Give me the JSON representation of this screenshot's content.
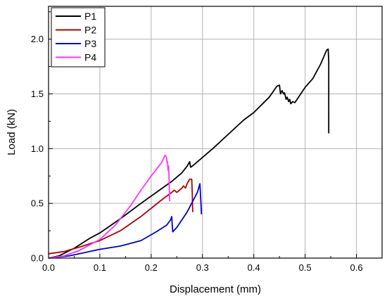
{
  "chart_data": {
    "type": "line",
    "title": "",
    "xlabel": "Displacement (mm)",
    "ylabel": "Load (kN)",
    "xlim": [
      0.0,
      0.65
    ],
    "ylim": [
      0.0,
      2.3
    ],
    "x_ticks": [
      "0.0",
      "0.1",
      "0.2",
      "0.3",
      "0.4",
      "0.5",
      "0.6"
    ],
    "y_ticks": [
      "0.0",
      "0.5",
      "1.0",
      "1.5",
      "2.0"
    ],
    "grid": true,
    "legend_position": "top-left",
    "series": [
      {
        "name": "P1",
        "color": "#000000",
        "points": [
          [
            0.0,
            0.0
          ],
          [
            0.02,
            0.02
          ],
          [
            0.05,
            0.09
          ],
          [
            0.08,
            0.18
          ],
          [
            0.1,
            0.23
          ],
          [
            0.14,
            0.36
          ],
          [
            0.18,
            0.5
          ],
          [
            0.21,
            0.6
          ],
          [
            0.24,
            0.7
          ],
          [
            0.26,
            0.78
          ],
          [
            0.27,
            0.84
          ],
          [
            0.275,
            0.88
          ],
          [
            0.277,
            0.83
          ],
          [
            0.28,
            0.84
          ],
          [
            0.3,
            0.92
          ],
          [
            0.32,
            1.0
          ],
          [
            0.35,
            1.13
          ],
          [
            0.38,
            1.26
          ],
          [
            0.4,
            1.33
          ],
          [
            0.43,
            1.47
          ],
          [
            0.445,
            1.57
          ],
          [
            0.45,
            1.58
          ],
          [
            0.452,
            1.5
          ],
          [
            0.455,
            1.53
          ],
          [
            0.458,
            1.5
          ],
          [
            0.46,
            1.51
          ],
          [
            0.463,
            1.45
          ],
          [
            0.465,
            1.47
          ],
          [
            0.468,
            1.43
          ],
          [
            0.47,
            1.45
          ],
          [
            0.472,
            1.41
          ],
          [
            0.476,
            1.43
          ],
          [
            0.48,
            1.42
          ],
          [
            0.5,
            1.56
          ],
          [
            0.515,
            1.64
          ],
          [
            0.53,
            1.77
          ],
          [
            0.542,
            1.9
          ],
          [
            0.545,
            1.91
          ],
          [
            0.546,
            1.8
          ],
          [
            0.546,
            1.14
          ]
        ]
      },
      {
        "name": "P2",
        "color": "#b00000",
        "points": [
          [
            0.0,
            0.04
          ],
          [
            0.03,
            0.06
          ],
          [
            0.06,
            0.1
          ],
          [
            0.1,
            0.16
          ],
          [
            0.14,
            0.25
          ],
          [
            0.18,
            0.38
          ],
          [
            0.22,
            0.53
          ],
          [
            0.24,
            0.6
          ],
          [
            0.245,
            0.62
          ],
          [
            0.25,
            0.6
          ],
          [
            0.26,
            0.64
          ],
          [
            0.263,
            0.66
          ],
          [
            0.267,
            0.64
          ],
          [
            0.27,
            0.68
          ],
          [
            0.275,
            0.72
          ],
          [
            0.279,
            0.72
          ],
          [
            0.28,
            0.6
          ],
          [
            0.281,
            0.42
          ]
        ]
      },
      {
        "name": "P3",
        "color": "#0000cc",
        "points": [
          [
            0.0,
            0.0
          ],
          [
            0.04,
            0.02
          ],
          [
            0.07,
            0.05
          ],
          [
            0.1,
            0.08
          ],
          [
            0.14,
            0.11
          ],
          [
            0.18,
            0.16
          ],
          [
            0.21,
            0.24
          ],
          [
            0.23,
            0.3
          ],
          [
            0.238,
            0.35
          ],
          [
            0.24,
            0.38
          ],
          [
            0.242,
            0.24
          ],
          [
            0.25,
            0.28
          ],
          [
            0.27,
            0.42
          ],
          [
            0.29,
            0.6
          ],
          [
            0.295,
            0.68
          ],
          [
            0.297,
            0.5
          ],
          [
            0.298,
            0.4
          ]
        ]
      },
      {
        "name": "P4",
        "color": "#ff33ff",
        "points": [
          [
            0.0,
            0.0
          ],
          [
            0.03,
            0.02
          ],
          [
            0.06,
            0.07
          ],
          [
            0.1,
            0.17
          ],
          [
            0.13,
            0.3
          ],
          [
            0.16,
            0.48
          ],
          [
            0.18,
            0.62
          ],
          [
            0.2,
            0.75
          ],
          [
            0.22,
            0.87
          ],
          [
            0.227,
            0.94
          ],
          [
            0.23,
            0.92
          ],
          [
            0.231,
            0.87
          ],
          [
            0.232,
            0.88
          ],
          [
            0.233,
            0.8
          ],
          [
            0.234,
            0.84
          ],
          [
            0.235,
            0.7
          ],
          [
            0.236,
            0.52
          ]
        ]
      }
    ]
  }
}
